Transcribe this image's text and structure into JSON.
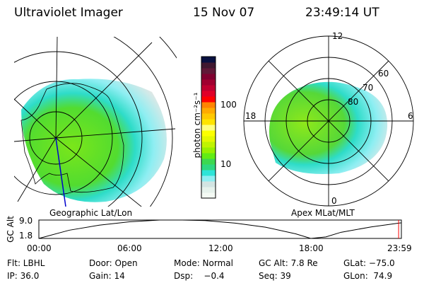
{
  "header": {
    "instrument": "Ultraviolet Imager",
    "date": "15 Nov 07",
    "time": "23:49:14 UT"
  },
  "left_panel": {
    "label": "Geographic Lat/Lon"
  },
  "right_panel": {
    "label": "Apex MLat/MLT",
    "mlt_labels": [
      "12",
      "18",
      "6",
      "0"
    ],
    "lat_labels": [
      "80",
      "70",
      "60"
    ]
  },
  "colorbar": {
    "unit_label": "photon cm⁻²s⁻¹",
    "tick_labels": [
      "100",
      "10"
    ],
    "scale": "log",
    "colors": [
      "#f4faf4",
      "#e6f2ec",
      "#d2e4e2",
      "#8eeef2",
      "#2ee4d8",
      "#2ed880",
      "#3cd850",
      "#62ec14",
      "#98f000",
      "#c0f400",
      "#e4f800",
      "#fcff00",
      "#ffff80",
      "#ffe400",
      "#ffc800",
      "#ffaa00",
      "#ff8400",
      "#ff0000",
      "#e00028",
      "#c00030",
      "#a00030",
      "#800030",
      "#601838",
      "#401830",
      "#081040"
    ]
  },
  "chart_data": {
    "type": "line",
    "ylabel": "GC Alt",
    "ytick_labels": [
      "9.0",
      "1.8"
    ],
    "ylim": [
      1.8,
      9.0
    ],
    "xtick_labels": [
      "00:00",
      "06:00",
      "12:00",
      "18:00",
      "23:59"
    ],
    "x_hours": [
      0,
      2,
      4,
      6,
      8,
      9.5,
      11,
      13,
      15,
      17,
      18,
      19,
      20,
      22,
      23.82,
      23.98
    ],
    "y": [
      1.8,
      5.0,
      7.0,
      8.3,
      9.0,
      9.0,
      8.8,
      7.8,
      6.2,
      3.6,
      1.8,
      2.4,
      4.2,
      6.3,
      7.8,
      7.9
    ],
    "current_time_marker": "23:49",
    "marker_color": "#ff0000"
  },
  "status": {
    "row1": [
      "Flt: LBHL",
      "Door: Open",
      "Mode: Normal",
      "GC Alt: 7.8 Re",
      "GLat: −75.0"
    ],
    "row2": [
      "IP: 36.0",
      "Gain: 14",
      "Dsp:    −0.4",
      "Seq: 39",
      "GLon:  74.9"
    ]
  }
}
